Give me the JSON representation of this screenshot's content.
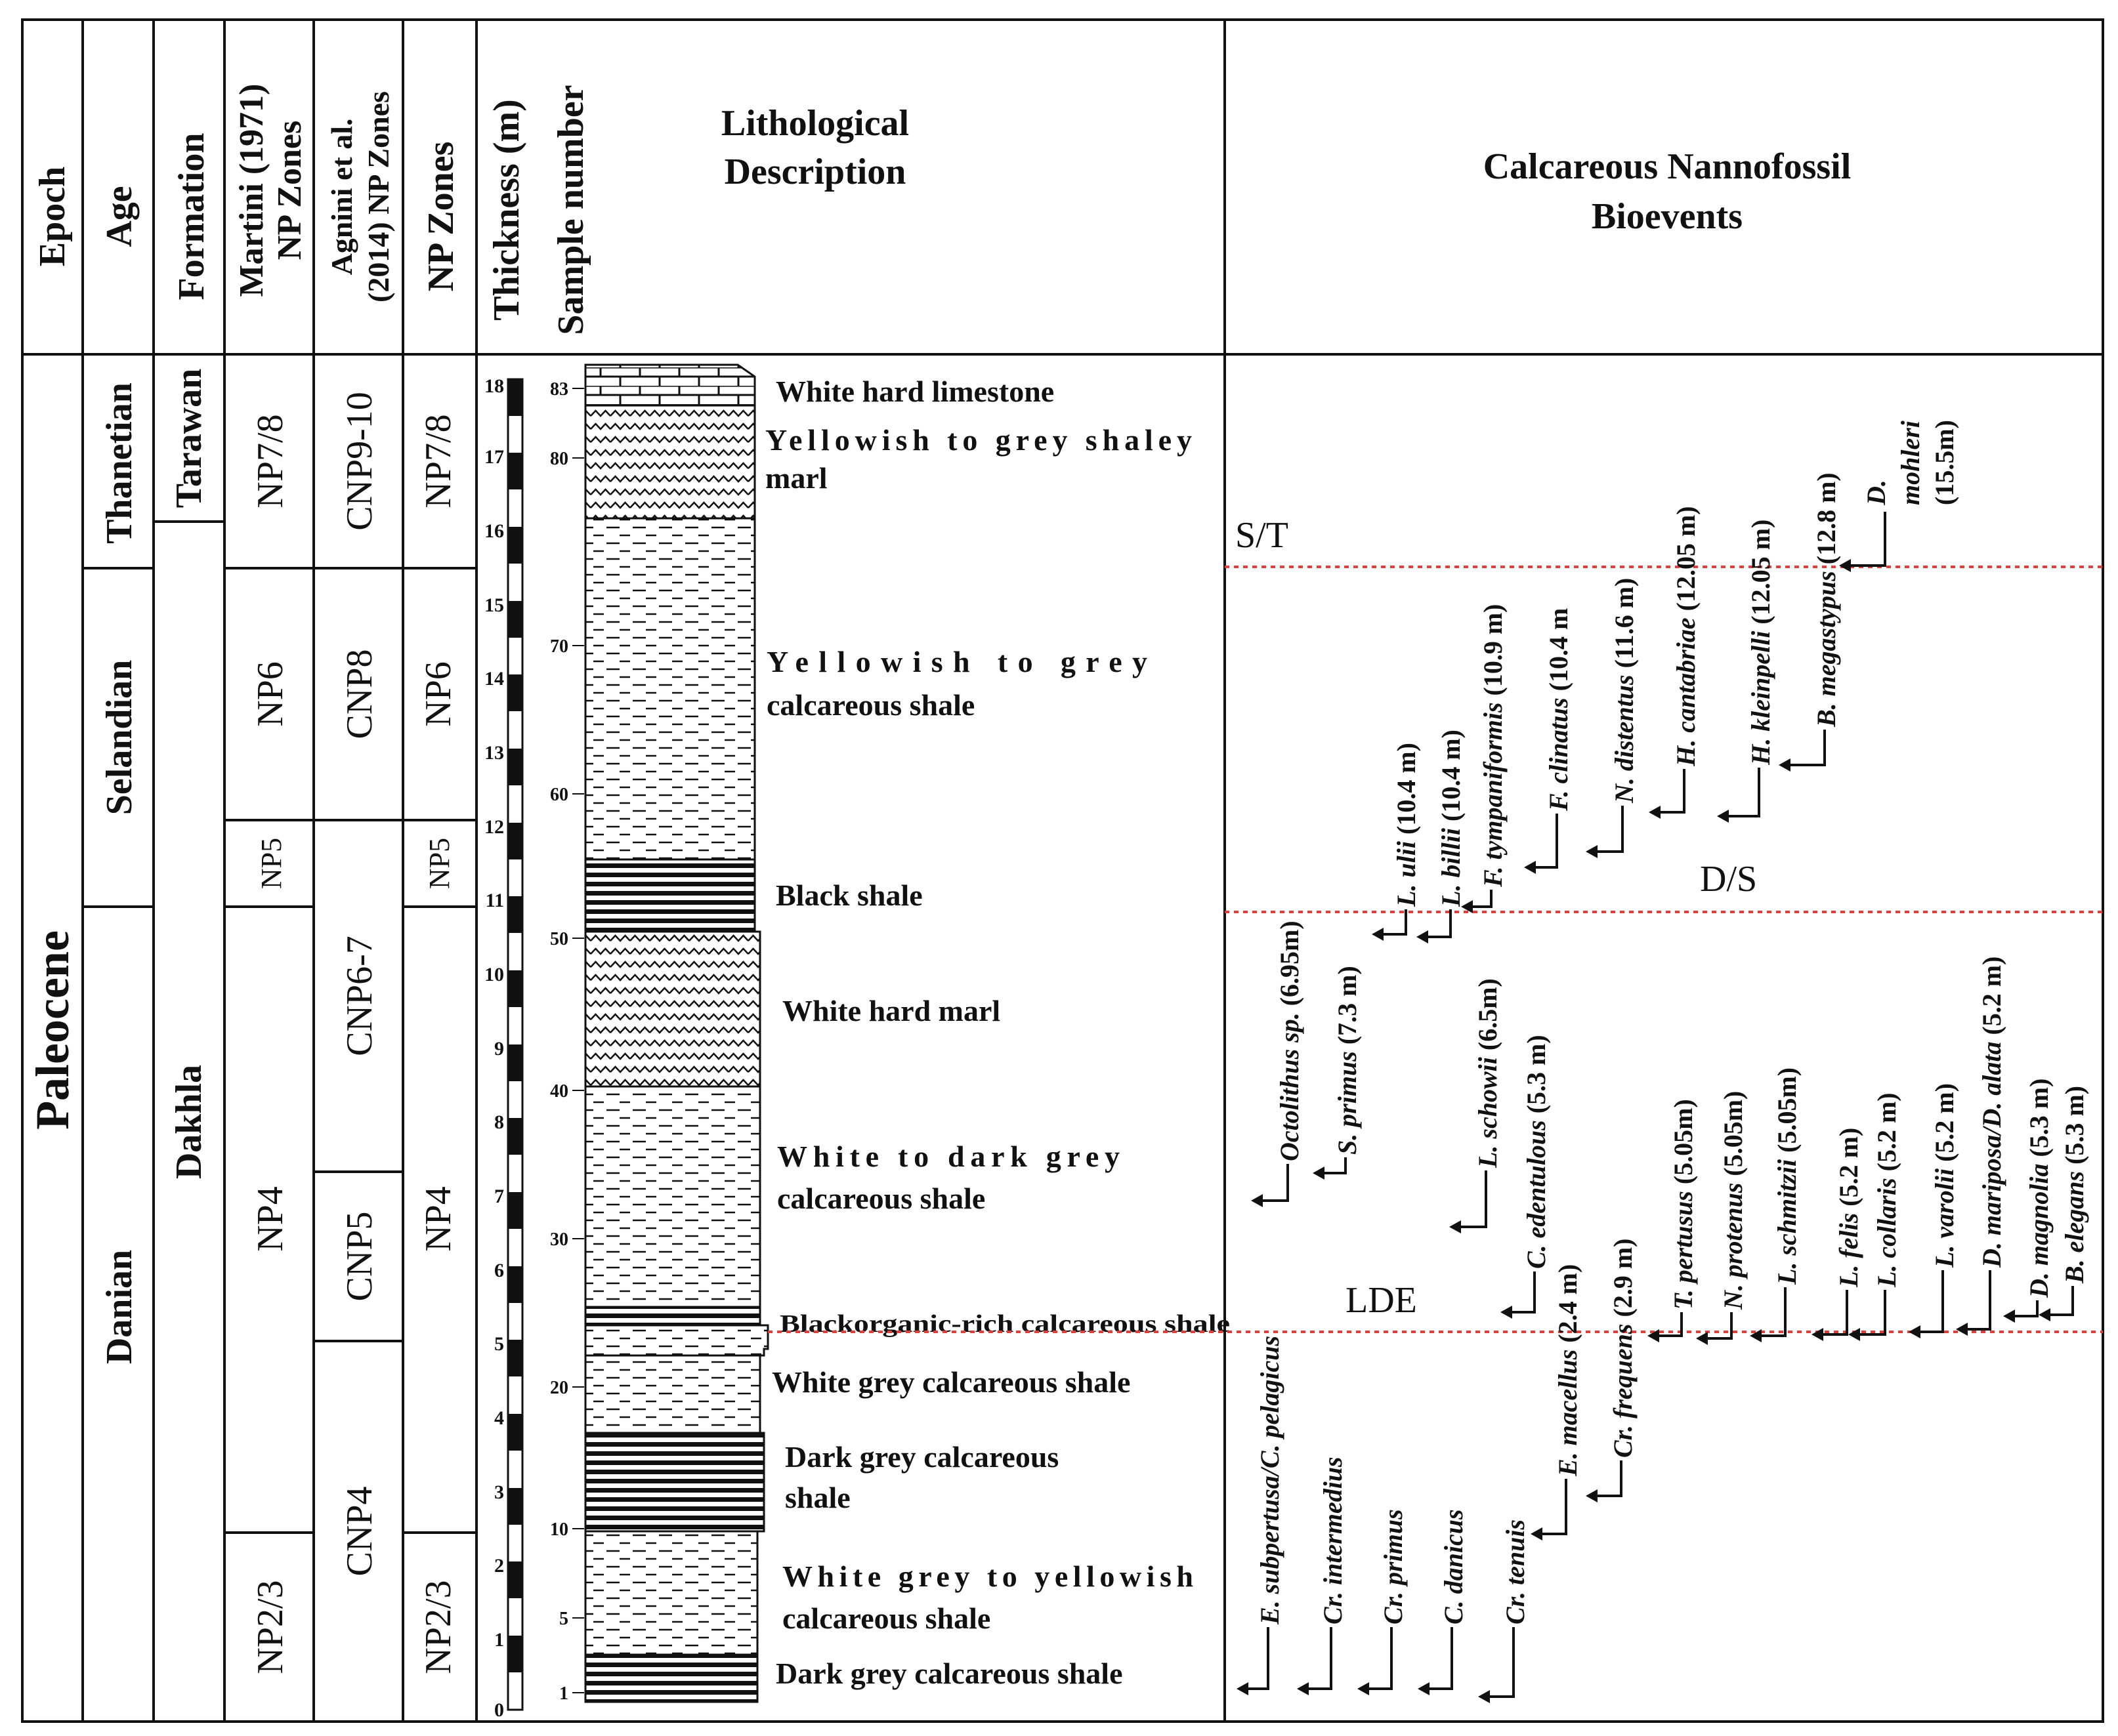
{
  "headers": {
    "epoch": "Epoch",
    "age": "Age",
    "formation": "Formation",
    "martini_l1": "Martini (1971)",
    "martini_l2": "NP Zones",
    "agnini_l1": "Agnini et al.",
    "agnini_l2": "(2014) NP Zones",
    "np": "NP Zones",
    "thickness": "Thickness (m)",
    "sample": "Sample number",
    "litho_l1": "Lithological",
    "litho_l2": "Description",
    "bio_l1": "Calcareous Nannofossil",
    "bio_l2": "Bioevents"
  },
  "epoch": "Paleocene",
  "ages": [
    "Thanetian",
    "Selandian",
    "Danian"
  ],
  "formations": [
    "Tarawan",
    "Dakhla"
  ],
  "martini_zones": [
    "NP7/8",
    "NP6",
    "NP5",
    "NP4",
    "NP2/3"
  ],
  "agnini_zones": [
    "CNP9-10",
    "CNP8",
    "CNP6-7",
    "CNP5",
    "CNP4"
  ],
  "np_zones": [
    "NP7/8",
    "NP6",
    "NP5",
    "NP4",
    "NP2/3"
  ],
  "thickness_ticks": [
    "18",
    "17",
    "16",
    "15",
    "14",
    "13",
    "12",
    "11",
    "10",
    "9",
    "8",
    "7",
    "6",
    "5",
    "4",
    "3",
    "2",
    "1",
    "0"
  ],
  "sample_ticks": [
    "83",
    "80",
    "70",
    "60",
    "50",
    "40",
    "30",
    "20",
    "10",
    "5",
    "1"
  ],
  "lithology": [
    "White hard limestone",
    "Yellowish to grey shaley",
    "marl",
    "Yellowish to grey",
    "calcareous shale",
    "Black shale",
    "White hard marl",
    "White to dark grey",
    "calcareous shale",
    "Blackorganic-rich calcareous shale",
    "White grey calcareous shale",
    "Dark grey calcareous",
    "shale",
    "White grey to yellowish",
    "calcareous shale",
    "Dark grey calcareous shale"
  ],
  "boundaries": [
    "S/T",
    "D/S",
    "LDE"
  ],
  "bioevents_top": [
    {
      "taxon": "L. ulii",
      "depth": "(10.4 m)"
    },
    {
      "taxon": "L. billii",
      "depth": "(10.4 m)"
    },
    {
      "taxon": "F. tympaniformis",
      "depth": "(10.9 m)"
    },
    {
      "taxon": "F. clinatus",
      "depth": "(10.4 m"
    },
    {
      "taxon": "N. distentus",
      "depth": "(11.6 m)"
    },
    {
      "taxon": "H. cantabriae",
      "depth": "(12.05 m)"
    },
    {
      "taxon": "H. kleinpelli",
      "depth": "(12.05 m)"
    },
    {
      "taxon": "B. megastypus",
      "depth": "(12.8 m)"
    },
    {
      "taxon": "D.",
      "taxon2": "mohleri",
      "depth": "(15.5m)"
    }
  ],
  "bioevents_mid": [
    {
      "taxon": "Octolithus sp.",
      "depth": "(6.95m)"
    },
    {
      "taxon": "S. primus",
      "depth": "(7.3 m)"
    },
    {
      "taxon": "L. schowii",
      "depth": "(6.5m)"
    },
    {
      "taxon": "C. edentulous",
      "depth": "(5.3 m)"
    }
  ],
  "bioevents_lde": [
    {
      "taxon": "T. pertusus",
      "depth": "(5.05m)"
    },
    {
      "taxon": "N. protenus",
      "depth": "(5.05m)"
    },
    {
      "taxon": "L. schmitzii",
      "depth": "(5.05m)"
    },
    {
      "taxon": "L. felis",
      "depth": "(5.2 m)"
    },
    {
      "taxon": "L. collaris",
      "depth": "(5.2 m)"
    },
    {
      "taxon": "L. varolii",
      "depth": "(5.2 m)"
    },
    {
      "taxon": "D. mariposa/D. alata",
      "depth": "(5.2 m)"
    },
    {
      "taxon": "D. magnolia",
      "depth": "(5.3 m)"
    },
    {
      "taxon": "B. elegans",
      "depth": "(5.3 m)"
    }
  ],
  "bioevents_low": [
    {
      "taxon": "E. subpertusa/C. pelagicus",
      "depth": ""
    },
    {
      "taxon": "Cr. intermedius",
      "depth": ""
    },
    {
      "taxon": "Cr. primus",
      "depth": ""
    },
    {
      "taxon": "C. danicus",
      "depth": ""
    },
    {
      "taxon": "Cr. tenuis",
      "depth": ""
    },
    {
      "taxon": "E. macellus",
      "depth": "(2.4 m)"
    },
    {
      "taxon": "Cr. frequens",
      "depth": "(2.9 m)"
    }
  ],
  "colors": {
    "line": "#111111",
    "boundary": "#e0403a"
  }
}
